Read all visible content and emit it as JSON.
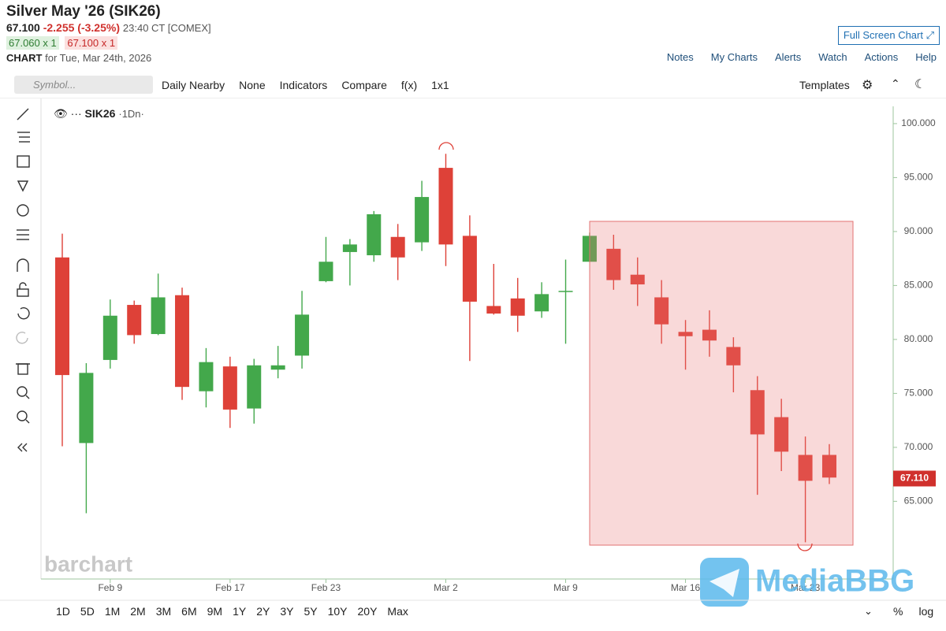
{
  "header": {
    "title": "Silver May '26 (SIK26)",
    "price": "67.100",
    "change": "-2.255 (-3.25%)",
    "time": "23:40 CT [COMEX]",
    "bid": "67.060 x 1",
    "ask": "67.100 x 1",
    "chart_label": "CHART",
    "chart_date": "for Tue, Mar 24th, 2026",
    "full_screen": "Full Screen Chart",
    "links": [
      "Notes",
      "My Charts",
      "Alerts",
      "Watch",
      "Actions",
      "Help"
    ]
  },
  "toolbar": {
    "symbol": "Symbol...",
    "items": [
      "Daily Nearby",
      "None",
      "Indicators",
      "Compare",
      "f(x)",
      "1x1"
    ],
    "templates": "Templates"
  },
  "legend": {
    "symbol": "SIK26",
    "interval": "·1Dn·"
  },
  "watermarks": [
    "barchart",
    "MediaBBG"
  ],
  "ranges": [
    "1D",
    "5D",
    "1M",
    "2M",
    "3M",
    "6M",
    "9M",
    "1Y",
    "2Y",
    "3Y",
    "5Y",
    "10Y",
    "20Y",
    "Max"
  ],
  "scale_options": [
    "%",
    "log"
  ],
  "chart_data": {
    "type": "candlestick",
    "categories": [
      null,
      null,
      "Feb 9",
      null,
      null,
      null,
      null,
      "Feb 17",
      null,
      null,
      null,
      "Feb 23",
      null,
      null,
      null,
      null,
      "Mar 2",
      null,
      null,
      null,
      null,
      "Mar 9",
      null,
      null,
      null,
      null,
      "Mar 16",
      null,
      null,
      null,
      null,
      "Mar 23",
      null
    ],
    "open": [
      87.6,
      70.4,
      78.1,
      83.2,
      80.5,
      84.1,
      75.2,
      77.5,
      73.6,
      77.2,
      78.5,
      85.4,
      88.1,
      87.8,
      89.5,
      89.0,
      95.9,
      89.6,
      83.1,
      83.8,
      82.6,
      84.4,
      87.2,
      88.4,
      86.0,
      83.9,
      80.7,
      80.9,
      79.3,
      75.3,
      72.8,
      69.3,
      69.3
    ],
    "high": [
      89.8,
      77.8,
      83.7,
      83.6,
      86.1,
      84.8,
      79.2,
      78.4,
      78.2,
      79.4,
      84.5,
      89.5,
      89.3,
      91.9,
      90.7,
      94.7,
      97.2,
      91.5,
      87.0,
      85.7,
      85.3,
      87.4,
      89.9,
      89.7,
      87.6,
      85.5,
      81.8,
      82.7,
      80.2,
      76.6,
      74.5,
      71.0,
      70.3
    ],
    "low": [
      70.1,
      63.9,
      77.3,
      79.6,
      80.4,
      74.4,
      73.7,
      71.8,
      72.2,
      76.4,
      77.3,
      85.3,
      85.0,
      87.2,
      85.5,
      88.2,
      86.8,
      78.0,
      82.3,
      80.7,
      82.0,
      79.6,
      87.2,
      84.6,
      83.1,
      79.6,
      77.2,
      78.4,
      75.1,
      65.6,
      67.8,
      61.2,
      66.6
    ],
    "close": [
      76.7,
      76.9,
      82.2,
      80.4,
      83.9,
      75.6,
      77.9,
      73.5,
      77.6,
      77.6,
      82.3,
      87.2,
      88.8,
      91.6,
      87.6,
      93.2,
      88.8,
      83.5,
      82.4,
      82.2,
      84.2,
      84.5,
      89.6,
      85.5,
      85.1,
      81.4,
      80.3,
      79.9,
      77.6,
      71.2,
      69.6,
      66.9,
      67.2
    ],
    "up_color": "#43a84b",
    "down_color": "#de4138",
    "ylim": [
      57.8,
      101.6
    ],
    "yticks": [
      {
        "value": 65,
        "label": "65.000"
      },
      {
        "value": 70,
        "label": "70.000"
      },
      {
        "value": 75,
        "label": "75.000"
      },
      {
        "value": 80,
        "label": "80.000"
      },
      {
        "value": 85,
        "label": "85.000"
      },
      {
        "value": 90,
        "label": "90.000"
      },
      {
        "value": 95,
        "label": "95.000"
      },
      {
        "value": 100,
        "label": "100.000"
      }
    ],
    "last_price": {
      "value": 67.11,
      "label": "67.110"
    }
  }
}
